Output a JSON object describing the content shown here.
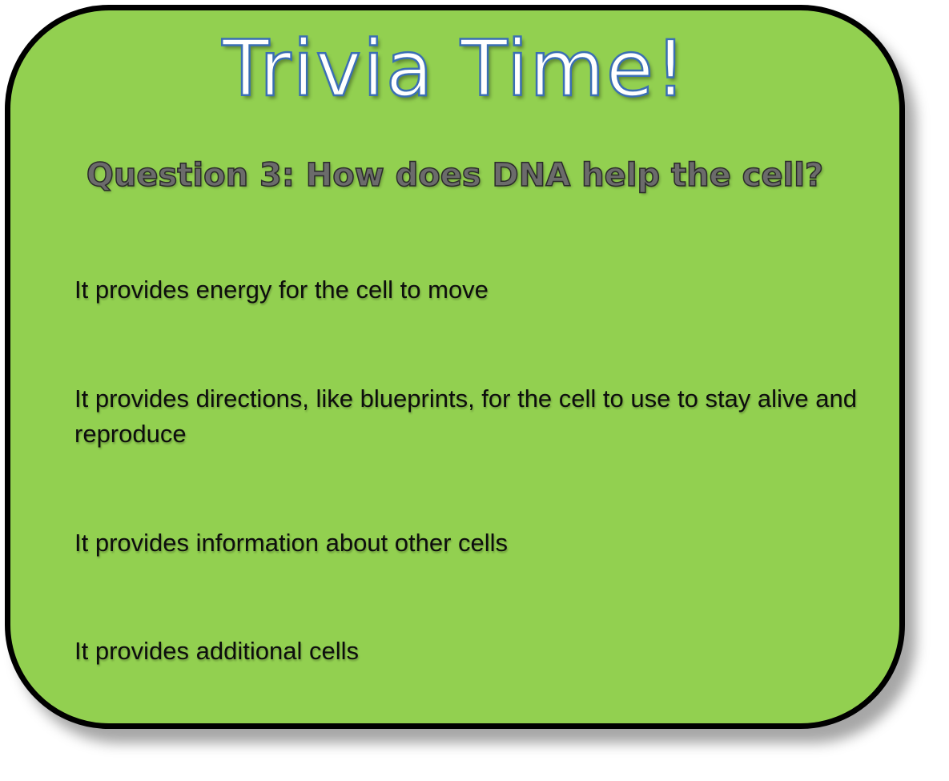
{
  "colors": {
    "card_background": "#92d050",
    "card_border": "#000000",
    "title_fill": "#ffffff",
    "title_outline": "#3a6fb4",
    "question_fill": "#6b6b6b",
    "answer_text": "#0d0d0d"
  },
  "title": "Trivia Time!",
  "question": "Question 3: How does DNA help the cell?",
  "answers": [
    "It provides energy for the cell to move",
    "It provides directions, like blueprints, for the cell to use to stay alive and reproduce",
    "It provides information about other cells",
    "It provides additional cells"
  ]
}
